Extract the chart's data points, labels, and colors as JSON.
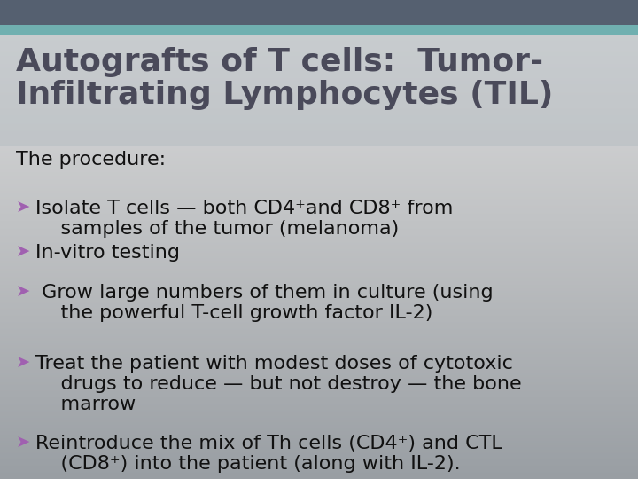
{
  "title_line1": "Autografts of T cells:  Tumor-",
  "title_line2": "Infiltrating Lymphocytes (TIL)",
  "title_color": "#4a4a5a",
  "title_fontsize": 26,
  "body_fontsize": 16,
  "arrow_color": "#a060b0",
  "text_color": "#111111",
  "bg_top_bar_color": "#556070",
  "bg_teal_color": "#70b0b0",
  "bg_gradient_top": "#aaaaaa",
  "bg_gradient_bottom": "#d8d8d8",
  "title_bg_color": "#a8b0b8",
  "lines": [
    {
      "text": "The procedure:",
      "bullet": false
    },
    {
      "text": "Isolate T cells — both CD4⁺and CD8⁺ from\n    samples of the tumor (melanoma)",
      "bullet": true
    },
    {
      "text": "In-vitro testing",
      "bullet": true
    },
    {
      "text": " Grow large numbers of them in culture (using\n    the powerful T-cell growth factor IL-2)",
      "bullet": true
    },
    {
      "text": "Treat the patient with modest doses of cytotoxic\n    drugs to reduce — but not destroy — the bone\n    marrow",
      "bullet": true
    },
    {
      "text": "Reintroduce the mix of Th cells (CD4⁺) and CTL\n    (CD8⁺) into the patient (along with IL-2).",
      "bullet": true
    }
  ]
}
